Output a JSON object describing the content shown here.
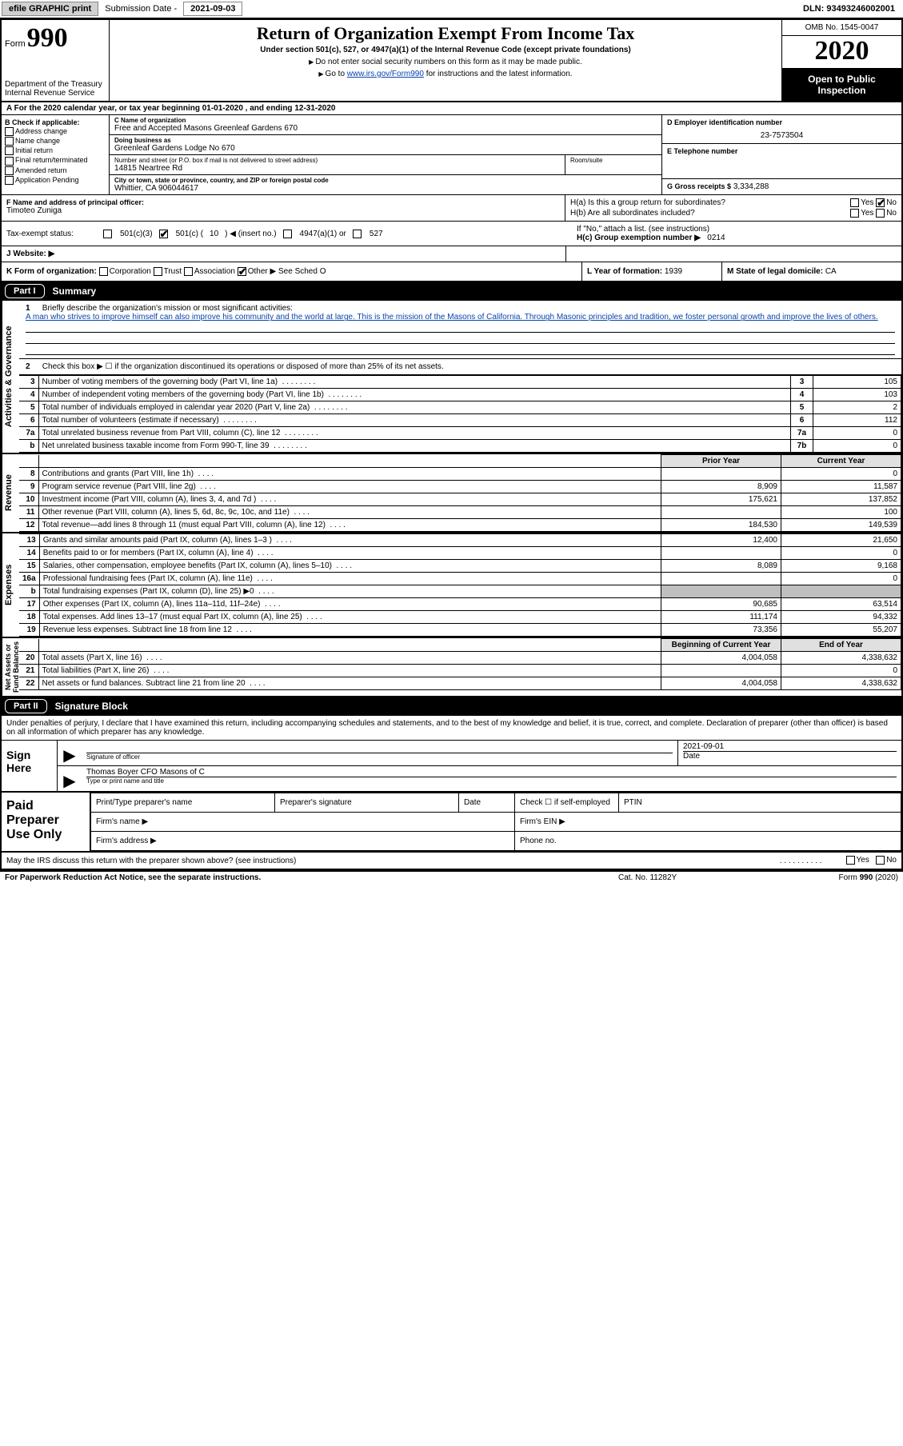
{
  "topbar": {
    "efile": "efile GRAPHIC print",
    "sub_lbl": "Submission Date -",
    "sub_date": "2021-09-03",
    "dln": "DLN: 93493246002001"
  },
  "header": {
    "form_word": "Form",
    "form_num": "990",
    "dept": "Department of the Treasury\nInternal Revenue Service",
    "title": "Return of Organization Exempt From Income Tax",
    "sub": "Under section 501(c), 527, or 4947(a)(1) of the Internal Revenue Code (except private foundations)",
    "note1": "Do not enter social security numbers on this form as it may be made public.",
    "note2_pre": "Go to ",
    "note2_link": "www.irs.gov/Form990",
    "note2_post": " for instructions and the latest information.",
    "omb": "OMB No. 1545-0047",
    "year": "2020",
    "open": "Open to Public Inspection"
  },
  "rowA": "A For the 2020 calendar year, or tax year beginning 01-01-2020    , and ending 12-31-2020",
  "colB": {
    "title": "B Check if applicable:",
    "items": [
      "Address change",
      "Name change",
      "Initial return",
      "Final return/terminated",
      "Amended return",
      "Application Pending"
    ]
  },
  "colC": {
    "name_lbl": "C Name of organization",
    "name": "Free and Accepted Masons Greenleaf Gardens 670",
    "dba_lbl": "Doing business as",
    "dba": "Greenleaf Gardens Lodge No 670",
    "addr_lbl": "Number and street (or P.O. box if mail is not delivered to street address)",
    "addr": "14815 Neartree Rd",
    "room_lbl": "Room/suite",
    "city_lbl": "City or town, state or province, country, and ZIP or foreign postal code",
    "city": "Whittier, CA  906044617"
  },
  "colD": {
    "ein_lbl": "D Employer identification number",
    "ein": "23-7573504",
    "tel_lbl": "E Telephone number",
    "gross_lbl": "G Gross receipts $",
    "gross": "3,334,288"
  },
  "rowF": {
    "lbl": "F  Name and address of principal officer:",
    "name": "Timoteo Zuniga"
  },
  "rowH": {
    "a_lbl": "H(a)  Is this a group return for subordinates?",
    "b_lbl": "H(b)  Are all subordinates included?",
    "b_note": "If \"No,\" attach a list. (see instructions)",
    "c_lbl": "H(c)  Group exemption number ▶",
    "c_val": "0214",
    "yes": "Yes",
    "no": "No"
  },
  "rowI": {
    "lbl": "Tax-exempt status:",
    "o1": "501(c)(3)",
    "o2_pre": "501(c) (",
    "o2_num": "10",
    "o2_post": ") ◀ (insert no.)",
    "o3": "4947(a)(1) or",
    "o4": "527"
  },
  "rowJ": "J Website: ▶",
  "rowK": {
    "lbl": "K Form of organization:",
    "opts": [
      "Corporation",
      "Trust",
      "Association",
      "Other"
    ],
    "other_note": "▶ See Sched O"
  },
  "rowL": {
    "lbl": "L Year of formation:",
    "val": "1939"
  },
  "rowM": {
    "lbl": "M State of legal domicile:",
    "val": "CA"
  },
  "part1": {
    "num": "Part I",
    "title": "Summary"
  },
  "side_labels": {
    "ag": "Activities & Governance",
    "rev": "Revenue",
    "exp": "Expenses",
    "net": "Net Assets or\nFund Balances"
  },
  "mission": {
    "num": "1",
    "lbl": "Briefly describe the organization's mission or most significant activities:",
    "text": "A man who strives to improve himself can also improve his community and the world at large. This is the mission of the Masons of California. Through Masonic principles and tradition, we foster personal growth and improve the lives of others."
  },
  "line2": "Check this box ▶ ☐  if the organization discontinued its operations or disposed of more than 25% of its net assets.",
  "gov_rows": [
    {
      "n": "3",
      "desc": "Number of voting members of the governing body (Part VI, line 1a)",
      "box": "3",
      "val": "105"
    },
    {
      "n": "4",
      "desc": "Number of independent voting members of the governing body (Part VI, line 1b)",
      "box": "4",
      "val": "103"
    },
    {
      "n": "5",
      "desc": "Total number of individuals employed in calendar year 2020 (Part V, line 2a)",
      "box": "5",
      "val": "2"
    },
    {
      "n": "6",
      "desc": "Total number of volunteers (estimate if necessary)",
      "box": "6",
      "val": "112"
    },
    {
      "n": "7a",
      "desc": "Total unrelated business revenue from Part VIII, column (C), line 12",
      "box": "7a",
      "val": "0"
    },
    {
      "n": "b",
      "desc": "Net unrelated business taxable income from Form 990-T, line 39",
      "box": "7b",
      "val": "0"
    }
  ],
  "fin_hdr": {
    "prior": "Prior Year",
    "current": "Current Year",
    "boy": "Beginning of Current Year",
    "eoy": "End of Year"
  },
  "rev_rows": [
    {
      "n": "8",
      "desc": "Contributions and grants (Part VIII, line 1h)",
      "p": "",
      "c": "0"
    },
    {
      "n": "9",
      "desc": "Program service revenue (Part VIII, line 2g)",
      "p": "8,909",
      "c": "11,587"
    },
    {
      "n": "10",
      "desc": "Investment income (Part VIII, column (A), lines 3, 4, and 7d )",
      "p": "175,621",
      "c": "137,852"
    },
    {
      "n": "11",
      "desc": "Other revenue (Part VIII, column (A), lines 5, 6d, 8c, 9c, 10c, and 11e)",
      "p": "",
      "c": "100"
    },
    {
      "n": "12",
      "desc": "Total revenue—add lines 8 through 11 (must equal Part VIII, column (A), line 12)",
      "p": "184,530",
      "c": "149,539"
    }
  ],
  "exp_rows": [
    {
      "n": "13",
      "desc": "Grants and similar amounts paid (Part IX, column (A), lines 1–3 )",
      "p": "12,400",
      "c": "21,650"
    },
    {
      "n": "14",
      "desc": "Benefits paid to or for members (Part IX, column (A), line 4)",
      "p": "",
      "c": "0"
    },
    {
      "n": "15",
      "desc": "Salaries, other compensation, employee benefits (Part IX, column (A), lines 5–10)",
      "p": "8,089",
      "c": "9,168"
    },
    {
      "n": "16a",
      "desc": "Professional fundraising fees (Part IX, column (A), line 11e)",
      "p": "",
      "c": "0"
    },
    {
      "n": "b",
      "desc": "Total fundraising expenses (Part IX, column (D), line 25) ▶0",
      "p": "SHADE",
      "c": "SHADE"
    },
    {
      "n": "17",
      "desc": "Other expenses (Part IX, column (A), lines 11a–11d, 11f–24e)",
      "p": "90,685",
      "c": "63,514"
    },
    {
      "n": "18",
      "desc": "Total expenses. Add lines 13–17 (must equal Part IX, column (A), line 25)",
      "p": "111,174",
      "c": "94,332"
    },
    {
      "n": "19",
      "desc": "Revenue less expenses. Subtract line 18 from line 12",
      "p": "73,356",
      "c": "55,207"
    }
  ],
  "net_rows": [
    {
      "n": "20",
      "desc": "Total assets (Part X, line 16)",
      "p": "4,004,058",
      "c": "4,338,632"
    },
    {
      "n": "21",
      "desc": "Total liabilities (Part X, line 26)",
      "p": "",
      "c": "0"
    },
    {
      "n": "22",
      "desc": "Net assets or fund balances. Subtract line 21 from line 20",
      "p": "4,004,058",
      "c": "4,338,632"
    }
  ],
  "part2": {
    "num": "Part II",
    "title": "Signature Block"
  },
  "sig_intro": "Under penalties of perjury, I declare that I have examined this return, including accompanying schedules and statements, and to the best of my knowledge and belief, it is true, correct, and complete. Declaration of preparer (other than officer) is based on all information of which preparer has any knowledge.",
  "sign": {
    "here": "Sign Here",
    "sig_cap": "Signature of officer",
    "date_cap": "Date",
    "date_val": "2021-09-01",
    "name": "Thomas Boyer  CFO Masons of C",
    "name_cap": "Type or print name and title"
  },
  "prep": {
    "title": "Paid Preparer Use Only",
    "r1": [
      "Print/Type preparer's name",
      "Preparer's signature",
      "Date",
      "Check ☐ if self-employed",
      "PTIN"
    ],
    "r2_l": "Firm's name    ▶",
    "r2_r": "Firm's EIN ▶",
    "r3_l": "Firm's address ▶",
    "r3_r": "Phone no."
  },
  "footer_q": "May the IRS discuss this return with the preparer shown above? (see instructions)",
  "paperwork": {
    "l": "For Paperwork Reduction Act Notice, see the separate instructions.",
    "c": "Cat. No. 11282Y",
    "r": "Form 990 (2020)"
  }
}
